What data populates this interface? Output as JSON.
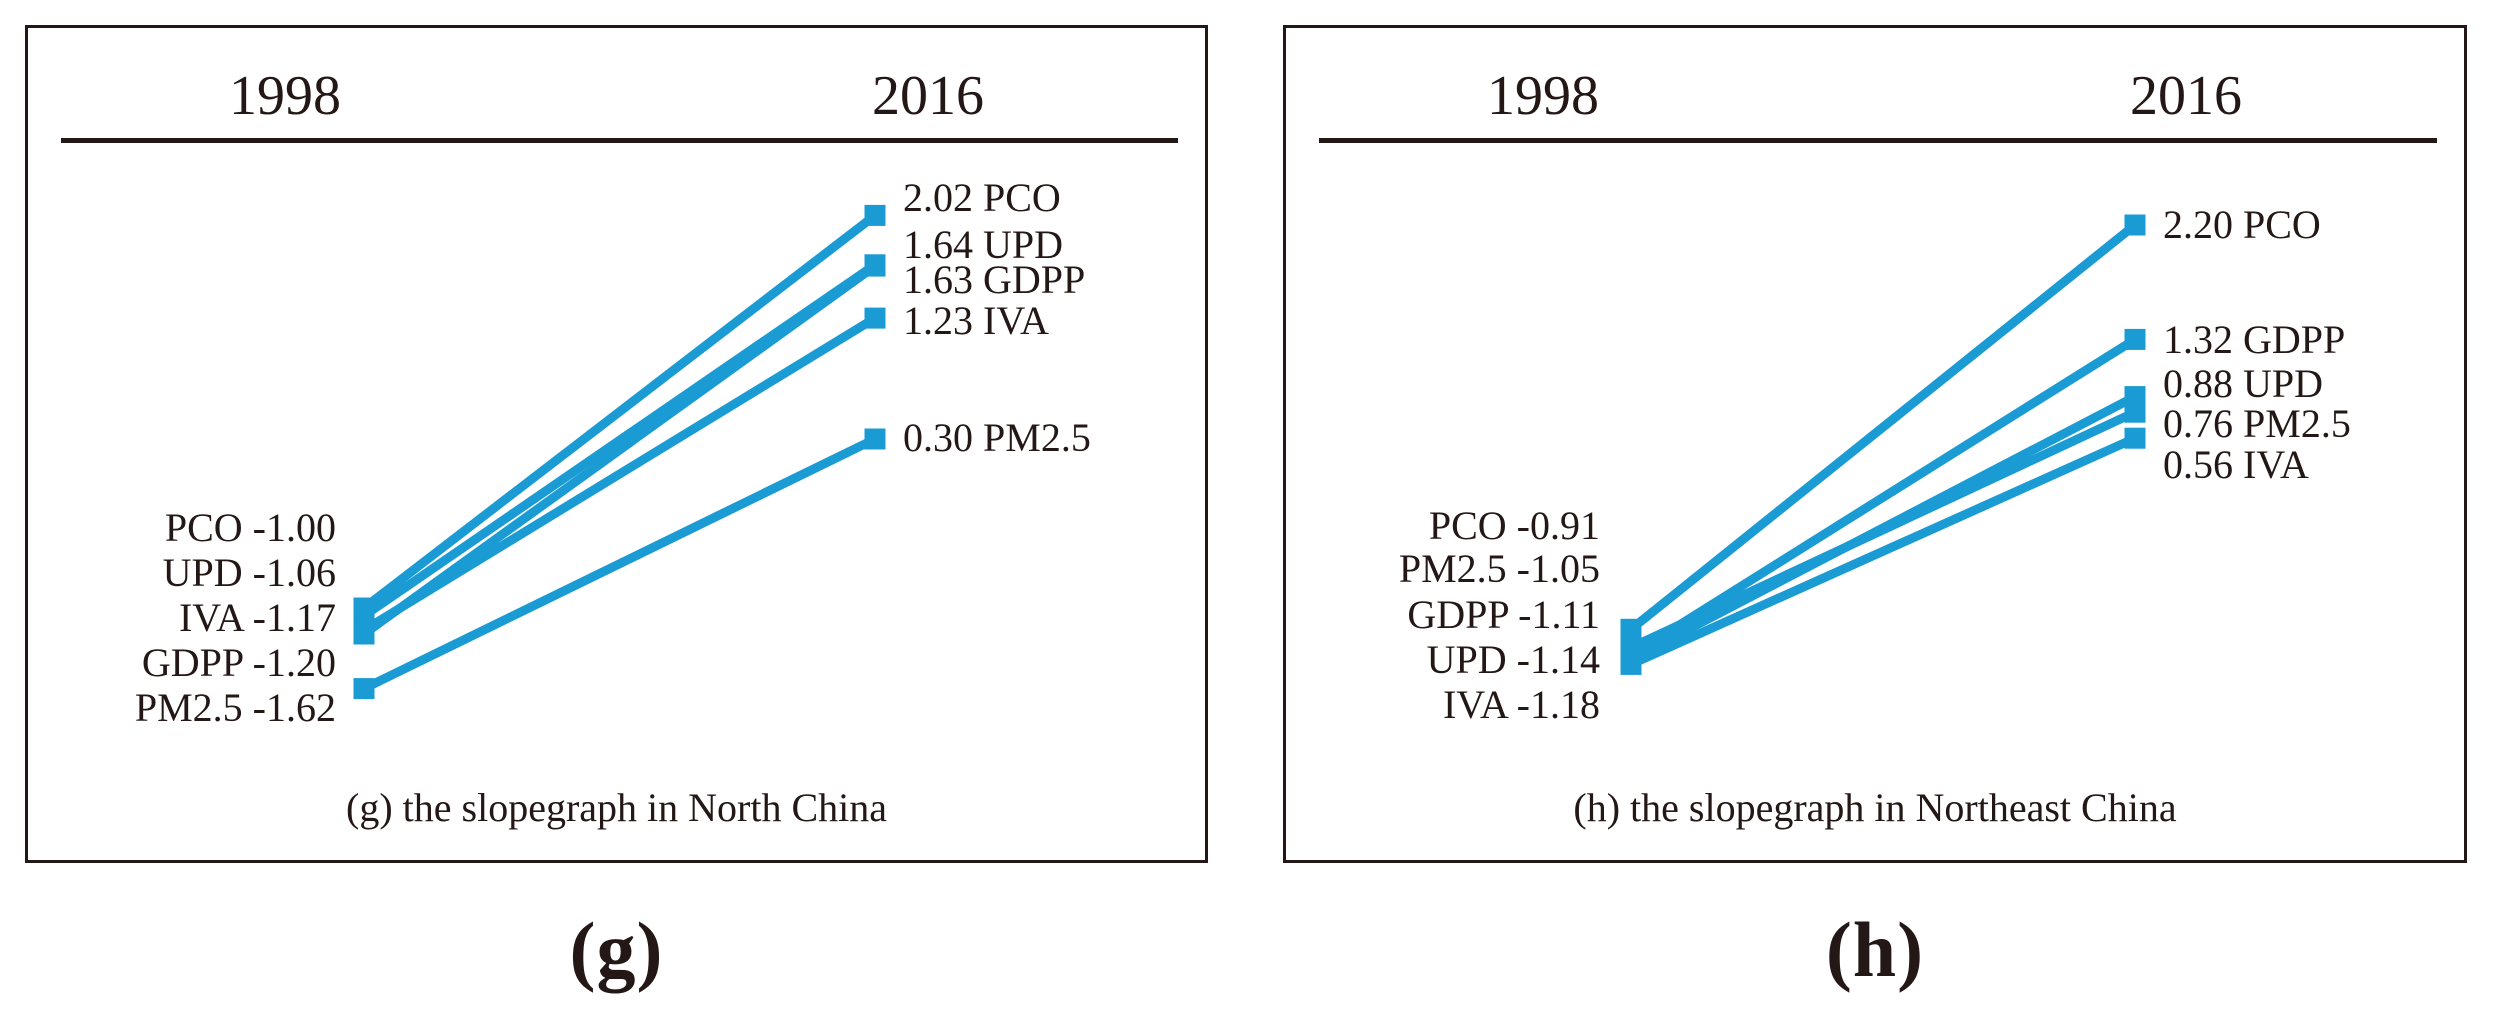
{
  "figure": {
    "accent_color": "#1A9BD3",
    "ink_color": "#231815",
    "panels": [
      {
        "id": "g",
        "column_headers": [
          "1998",
          "2016"
        ],
        "left_labels": [
          "PCO -1.00",
          "UPD -1.06",
          "IVA -1.17",
          "GDPP -1.20",
          "PM2.5 -1.62"
        ],
        "right_labels": [
          "2.02 PCO",
          "1.64 UPD",
          "1.63 GDPP",
          "1.23 IVA",
          "0.30 PM2.5"
        ],
        "caption": "(g) the slopegraph in North China",
        "figure_label": "(g)"
      },
      {
        "id": "h",
        "column_headers": [
          "1998",
          "2016"
        ],
        "left_labels": [
          "PCO -0.91",
          "PM2.5 -1.05",
          "GDPP -1.11",
          "UPD -1.14",
          "IVA -1.18"
        ],
        "right_labels": [
          "2.20 PCO",
          "1.32 GDPP",
          "0.88 UPD",
          "0.76 PM2.5",
          "0.56 IVA"
        ],
        "caption": "(h) the slopegraph in Northeast China",
        "figure_label": "(h)"
      }
    ]
  },
  "chart_data": [
    {
      "type": "line",
      "variant": "slopegraph",
      "title": "(g) the slopegraph in North China",
      "x": [
        "1998",
        "2016"
      ],
      "series": [
        {
          "name": "PCO",
          "values": [
            -1.0,
            2.02
          ]
        },
        {
          "name": "UPD",
          "values": [
            -1.06,
            1.64
          ]
        },
        {
          "name": "GDPP",
          "values": [
            -1.2,
            1.63
          ]
        },
        {
          "name": "IVA",
          "values": [
            -1.17,
            1.23
          ]
        },
        {
          "name": "PM2.5",
          "values": [
            -1.62,
            0.3
          ]
        }
      ],
      "ylim": [
        -2.0,
        2.5
      ],
      "grid": false,
      "legend": "none",
      "marker": "square"
    },
    {
      "type": "line",
      "variant": "slopegraph",
      "title": "(h) the slopegraph in Northeast China",
      "x": [
        "1998",
        "2016"
      ],
      "series": [
        {
          "name": "PCO",
          "values": [
            -0.91,
            2.2
          ]
        },
        {
          "name": "PM2.5",
          "values": [
            -1.05,
            0.76
          ]
        },
        {
          "name": "GDPP",
          "values": [
            -1.11,
            1.32
          ]
        },
        {
          "name": "UPD",
          "values": [
            -1.14,
            0.88
          ]
        },
        {
          "name": "IVA",
          "values": [
            -1.18,
            0.56
          ]
        }
      ],
      "ylim": [
        -2.0,
        2.5
      ],
      "grid": false,
      "legend": "none",
      "marker": "square"
    }
  ]
}
